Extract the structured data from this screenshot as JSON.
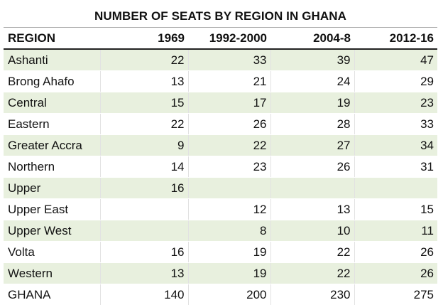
{
  "title": "NUMBER OF SEATS BY REGION IN GHANA",
  "headers": [
    "REGION",
    "1969",
    "1992-2000",
    "2004-8",
    "2012-16"
  ],
  "rows": [
    {
      "region": "Ashanti",
      "v1969": "22",
      "v1992": "33",
      "v2004": "39",
      "v2012": "47"
    },
    {
      "region": "Brong Ahafo",
      "v1969": "13",
      "v1992": "21",
      "v2004": "24",
      "v2012": "29"
    },
    {
      "region": "Central",
      "v1969": "15",
      "v1992": "17",
      "v2004": "19",
      "v2012": "23"
    },
    {
      "region": "Eastern",
      "v1969": "22",
      "v1992": "26",
      "v2004": "28",
      "v2012": "33"
    },
    {
      "region": "Greater Accra",
      "v1969": "9",
      "v1992": "22",
      "v2004": "27",
      "v2012": "34"
    },
    {
      "region": "Northern",
      "v1969": "14",
      "v1992": "23",
      "v2004": "26",
      "v2012": "31"
    },
    {
      "region": "Upper",
      "v1969": "16",
      "v1992": "",
      "v2004": "",
      "v2012": ""
    },
    {
      "region": "Upper East",
      "v1969": "",
      "v1992": "12",
      "v2004": "13",
      "v2012": "15"
    },
    {
      "region": "Upper West",
      "v1969": "",
      "v1992": "8",
      "v2004": "10",
      "v2012": "11"
    },
    {
      "region": "Volta",
      "v1969": "16",
      "v1992": "19",
      "v2004": "22",
      "v2012": "26"
    },
    {
      "region": "Western",
      "v1969": "13",
      "v1992": "19",
      "v2004": "22",
      "v2012": "26"
    }
  ],
  "total": {
    "region": "GHANA",
    "v1969": "140",
    "v1992": "200",
    "v2004": "230",
    "v2012": "275"
  }
}
